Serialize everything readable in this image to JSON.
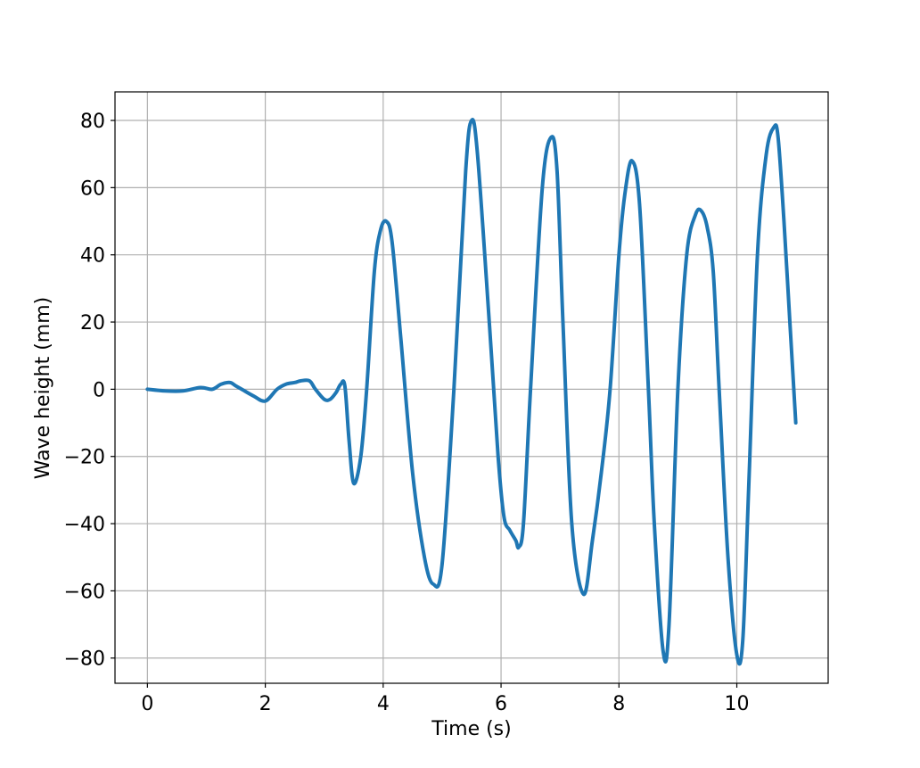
{
  "chart_data": {
    "type": "line",
    "title": "",
    "xlabel": "Time (s)",
    "ylabel": "Wave height (mm)",
    "xlim": [
      -0.55,
      11.55
    ],
    "ylim": [
      -87.5,
      88.5
    ],
    "grid": true,
    "x_ticks": [
      0,
      2,
      4,
      6,
      8,
      10
    ],
    "y_ticks": [
      -80,
      -60,
      -40,
      -20,
      0,
      20,
      40,
      60,
      80
    ],
    "x_tick_labels": [
      "0",
      "2",
      "4",
      "6",
      "8",
      "10"
    ],
    "y_tick_labels": [
      "−80",
      "−60",
      "−40",
      "−20",
      "0",
      "20",
      "40",
      "60",
      "80"
    ],
    "colors": {
      "line": "#1f77b4",
      "grid": "#b0b0b0"
    },
    "series": [
      {
        "x": [
          0.0,
          0.3,
          0.6,
          0.9,
          1.1,
          1.25,
          1.4,
          1.5,
          1.6,
          1.8,
          2.0,
          2.2,
          2.35,
          2.5,
          2.6,
          2.75,
          2.85,
          3.0,
          3.1,
          3.2,
          3.28,
          3.35,
          3.42,
          3.5,
          3.62,
          3.72,
          3.85,
          3.95,
          4.05,
          4.15,
          4.3,
          4.5,
          4.7,
          4.85,
          5.0,
          5.2,
          5.4,
          5.5,
          5.6,
          5.8,
          5.95,
          6.05,
          6.15,
          6.25,
          6.3,
          6.38,
          6.5,
          6.7,
          6.85,
          6.95,
          7.05,
          7.2,
          7.4,
          7.55,
          7.7,
          7.85,
          8.0,
          8.1,
          8.22,
          8.35,
          8.5,
          8.6,
          8.75,
          8.85,
          9.0,
          9.15,
          9.3,
          9.4,
          9.5,
          9.6,
          9.7,
          9.85,
          10.0,
          10.1,
          10.2,
          10.35,
          10.5,
          10.63,
          10.7,
          10.8,
          10.9,
          11.0
        ],
        "y": [
          0,
          -0.5,
          -0.5,
          0.5,
          0,
          1.5,
          2,
          1,
          0,
          -2,
          -3.5,
          0,
          1.5,
          2,
          2.5,
          2.5,
          0,
          -3,
          -3,
          -1,
          1.5,
          1,
          -15,
          -28,
          -20,
          0,
          35,
          47,
          50,
          44,
          15,
          -25,
          -50,
          -58,
          -52,
          0,
          65,
          80,
          70,
          20,
          -20,
          -38,
          -42,
          -45,
          -47,
          -40,
          0,
          60,
          75,
          65,
          20,
          -40,
          -61,
          -45,
          -25,
          0,
          40,
          58,
          68,
          55,
          0,
          -40,
          -78,
          -70,
          0,
          40,
          52,
          53,
          48,
          35,
          0,
          -50,
          -79,
          -75,
          -30,
          40,
          70,
          78,
          75,
          50,
          20,
          -10
        ]
      }
    ]
  }
}
